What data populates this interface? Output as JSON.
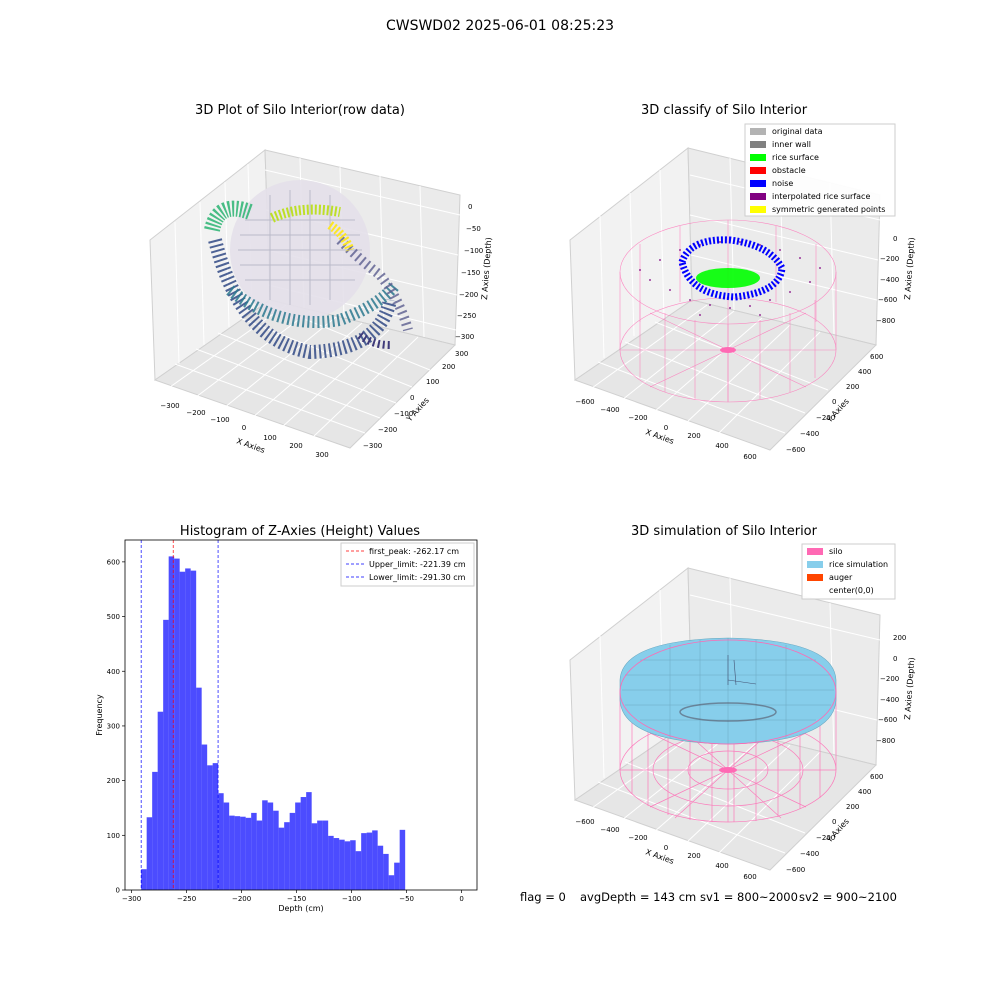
{
  "figure": {
    "suptitle": "CWSWD02 2025-06-01 08:25:23"
  },
  "panels": {
    "raw": {
      "title": "3D Plot of Silo Interior(row data)",
      "xlabel": "X Axies",
      "ylabel": "Y Axies",
      "zlabel": "Z Axies (Depth)",
      "xticks": [
        "−300",
        "−200",
        "−100",
        "0",
        "100",
        "200",
        "300"
      ],
      "yticks": [
        "−300",
        "−200",
        "−100",
        "0",
        "100",
        "200",
        "300"
      ],
      "zticks": [
        "0",
        "−50",
        "−100",
        "−150",
        "−200",
        "−250",
        "−300"
      ]
    },
    "classify": {
      "title": "3D classify of Silo Interior",
      "xlabel": "X Axies",
      "ylabel": "Y Axies",
      "zlabel": "Z Axies (Depth)",
      "xticks": [
        "−600",
        "−400",
        "−200",
        "0",
        "200",
        "400",
        "600"
      ],
      "yticks": [
        "−600",
        "−400",
        "−200",
        "0",
        "200",
        "400",
        "600"
      ],
      "zticks": [
        "0",
        "−200",
        "−400",
        "−600",
        "−800"
      ],
      "legend": [
        {
          "label": "original data",
          "color": "#b3b3b3"
        },
        {
          "label": "inner wall",
          "color": "#808080"
        },
        {
          "label": "rice surface",
          "color": "#00ff00"
        },
        {
          "label": "obstacle",
          "color": "#ff0000"
        },
        {
          "label": "noise",
          "color": "#0000ff"
        },
        {
          "label": "interpolated rice surface",
          "color": "#800080"
        },
        {
          "label": "symmetric generated points",
          "color": "#ffff00"
        }
      ]
    },
    "simulation": {
      "title": "3D simulation of Silo Interior",
      "xlabel": "X Axies",
      "ylabel": "Y Axies",
      "zlabel": "Z Axies (Depth)",
      "xticks": [
        "−600",
        "−400",
        "−200",
        "0",
        "200",
        "400",
        "600"
      ],
      "yticks": [
        "−600",
        "−400",
        "−200",
        "0",
        "200",
        "400",
        "600"
      ],
      "zticks": [
        "200",
        "0",
        "−200",
        "−400",
        "−600",
        "−800"
      ],
      "legend": [
        {
          "label": "silo",
          "color": "#ff69b4"
        },
        {
          "label": "rice simulation",
          "color": "#87ceeb"
        },
        {
          "label": "auger",
          "color": "#ff4500"
        },
        {
          "label": "center(0,0)",
          "color": ""
        }
      ]
    }
  },
  "info": {
    "flag": "flag = 0",
    "avg": "avgDepth = 143 cm",
    "sv1": "sv1 = 800~2000",
    "sv2": "sv2 = 900~2100"
  },
  "chart_data": {
    "type": "bar",
    "title": "Histogram of Z-Axies (Height) Values",
    "xlabel": "Depth (cm)",
    "ylabel": "Frequency",
    "xlim": [
      -306,
      14
    ],
    "ylim": [
      0,
      640
    ],
    "xticks": [
      -300,
      -250,
      -200,
      -150,
      -100,
      -50,
      0
    ],
    "xtick_labels": [
      "−300",
      "−250",
      "−200",
      "−150",
      "−100",
      "−50",
      "0"
    ],
    "yticks": [
      0,
      100,
      200,
      300,
      400,
      500,
      600
    ],
    "bar_color": "#0000ff",
    "bin_start": -291.3,
    "bin_width": 5.0,
    "values": [
      38,
      133,
      216,
      326,
      494,
      610,
      606,
      582,
      588,
      584,
      370,
      266,
      228,
      232,
      177,
      160,
      136,
      135,
      134,
      132,
      141,
      127,
      164,
      160,
      145,
      114,
      124,
      141,
      160,
      170,
      179,
      122,
      127,
      127,
      99,
      95,
      92,
      89,
      91,
      71,
      104,
      105,
      109,
      81,
      66,
      27,
      50,
      110
    ],
    "vlines": [
      {
        "label": "first_peak: -262.17 cm",
        "x": -262.17,
        "color": "#ff0000"
      },
      {
        "label": "Upper_limit: -221.39 cm",
        "x": -221.39,
        "color": "#0000ff"
      },
      {
        "label": "Lower_limit: -291.30 cm",
        "x": -291.3,
        "color": "#0000ff"
      }
    ],
    "legend_position": "top-right"
  }
}
